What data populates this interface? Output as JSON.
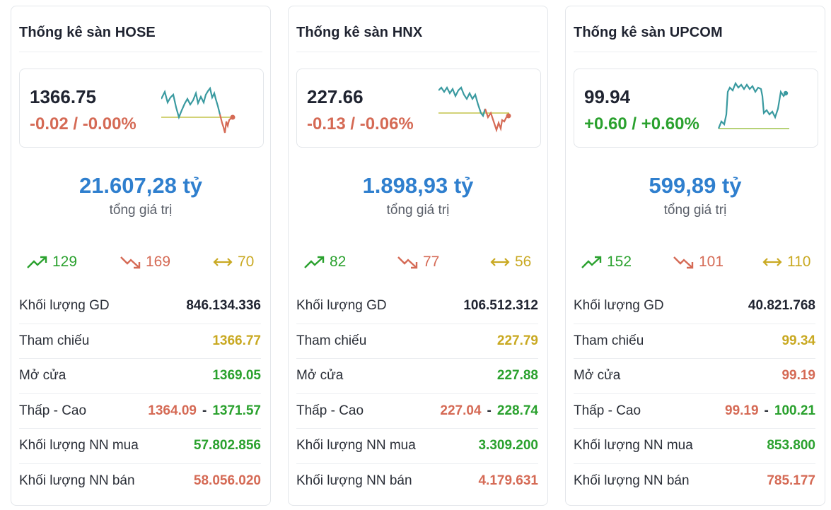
{
  "colors": {
    "up": "#2aa12e",
    "down": "#d56a55",
    "reference": "#c9a922",
    "accent": "#2f7fce",
    "spark_line": "#3a9aa0"
  },
  "cards": [
    {
      "title": "Thống kê sàn HOSE",
      "index": "1366.75",
      "change": "-0.02 / -0.00%",
      "direction": "down",
      "total_value": "21.607,28 tỷ",
      "total_label": "tổng giá trị",
      "advancers": "129",
      "decliners": "169",
      "unchanged": "70",
      "rows": {
        "volume_label": "Khối lượng GD",
        "volume": "846.134.336",
        "ref_label": "Tham chiếu",
        "ref": "1366.77",
        "open_label": "Mở cửa",
        "open": "1369.05",
        "range_label": "Thấp - Cao",
        "low": "1364.09",
        "high": "1371.57",
        "foreign_buy_label": "Khối lượng NN mua",
        "foreign_buy": "57.802.856",
        "foreign_sell_label": "Khối lượng NN bán",
        "foreign_sell": "58.056.020"
      },
      "open_direction": "up"
    },
    {
      "title": "Thống kê sàn HNX",
      "index": "227.66",
      "change": "-0.13 / -0.06%",
      "direction": "down",
      "total_value": "1.898,93 tỷ",
      "total_label": "tổng giá trị",
      "advancers": "82",
      "decliners": "77",
      "unchanged": "56",
      "rows": {
        "volume_label": "Khối lượng GD",
        "volume": "106.512.312",
        "ref_label": "Tham chiếu",
        "ref": "227.79",
        "open_label": "Mở cửa",
        "open": "227.88",
        "range_label": "Thấp - Cao",
        "low": "227.04",
        "high": "228.74",
        "foreign_buy_label": "Khối lượng NN mua",
        "foreign_buy": "3.309.200",
        "foreign_sell_label": "Khối lượng NN bán",
        "foreign_sell": "4.179.631"
      },
      "open_direction": "up"
    },
    {
      "title": "Thống kê sàn UPCOM",
      "index": "99.94",
      "change": "+0.60 / +0.60%",
      "direction": "up",
      "total_value": "599,89 tỷ",
      "total_label": "tổng giá trị",
      "advancers": "152",
      "decliners": "101",
      "unchanged": "110",
      "rows": {
        "volume_label": "Khối lượng GD",
        "volume": "40.821.768",
        "ref_label": "Tham chiếu",
        "ref": "99.34",
        "open_label": "Mở cửa",
        "open": "99.19",
        "range_label": "Thấp - Cao",
        "low": "99.19",
        "high": "100.21",
        "foreign_buy_label": "Khối lượng NN mua",
        "foreign_buy": "853.800",
        "foreign_sell_label": "Khối lượng NN bán",
        "foreign_sell": "785.177"
      },
      "open_direction": "down"
    }
  ]
}
